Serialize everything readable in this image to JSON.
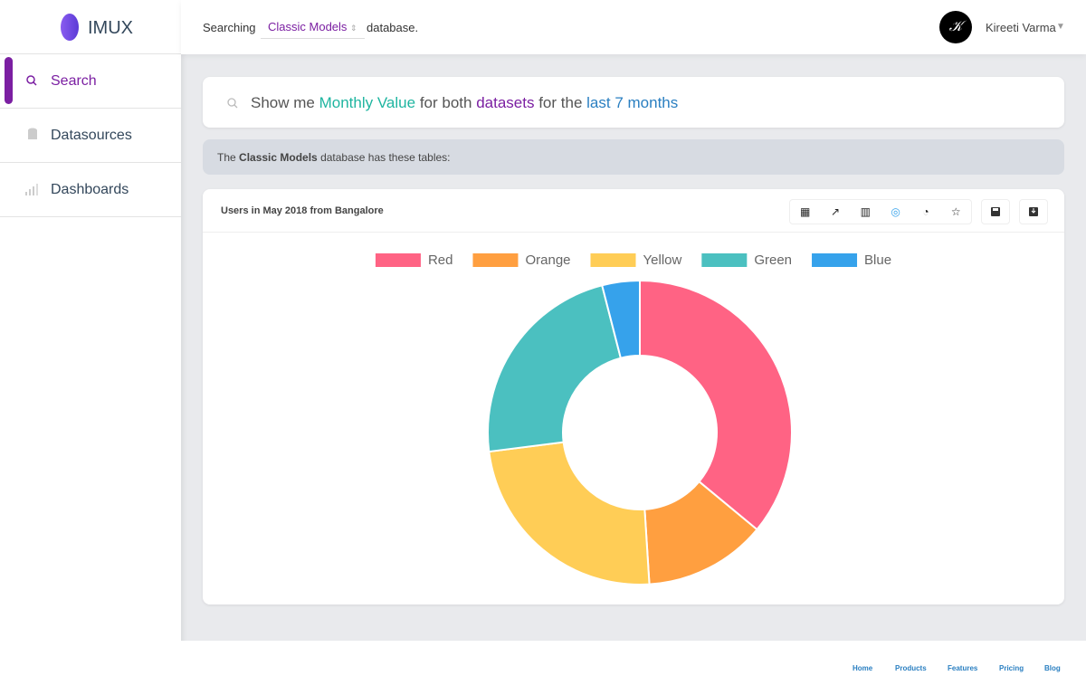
{
  "brand": "IMUX",
  "nav": [
    "Search",
    "Datasources",
    "Dashboards"
  ],
  "topbar": {
    "searching": "Searching",
    "database": "Classic Models",
    "suffix": "database.",
    "user": "Kireeti Varma"
  },
  "query": {
    "parts": [
      "Show me",
      "Monthly Value",
      "for both",
      "datasets",
      "for the",
      "last 7 months"
    ]
  },
  "info": {
    "parts": [
      "The",
      "Classic Models",
      "database has these tables:"
    ]
  },
  "card": {
    "title": "Users in May 2018 from Bangalore"
  },
  "footer": {
    "links": [
      "Home",
      "Products",
      "Features",
      "Pricing",
      "Blog"
    ]
  },
  "chart_data": {
    "type": "doughnut",
    "categories": [
      "Red",
      "Orange",
      "Yellow",
      "Green",
      "Blue"
    ],
    "values": [
      36,
      13,
      24,
      23,
      4
    ],
    "colors": [
      "#ff6384",
      "#ff9f40",
      "#ffcd56",
      "#4bc0c0",
      "#36a2eb"
    ],
    "legend": "top"
  }
}
